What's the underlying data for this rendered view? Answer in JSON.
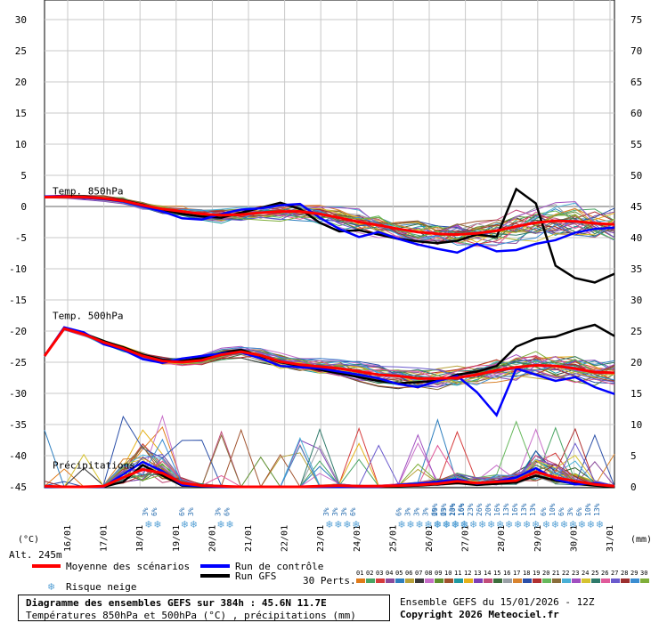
{
  "chart_data": {
    "type": "line",
    "title": "Diagramme des ensembles GEFS sur 384h : 45.6N 11.7E",
    "subtitle": "Températures 850hPa et 500hPa (°C) , précipitations (mm)",
    "run_info": "Ensemble GEFS du 15/01/2026 - 12Z",
    "copyright": "Copyright 2026 Meteociel.fr",
    "altitude_label": "Alt. 245m",
    "left_axis_unit": "(°C)",
    "right_axis_unit": "(mm)",
    "left_ticks": [
      30,
      25,
      20,
      15,
      10,
      5,
      0,
      -5,
      -10,
      -15,
      -20,
      -25,
      -30,
      -35,
      -40,
      -45
    ],
    "right_ticks": [
      75,
      70,
      65,
      60,
      55,
      50,
      45,
      40,
      35,
      30,
      25,
      20,
      15,
      10,
      5,
      0
    ],
    "ylim": [
      -45,
      30
    ],
    "x_dates": [
      "16/01",
      "17/01",
      "18/01",
      "19/01",
      "20/01",
      "21/01",
      "22/01",
      "23/01",
      "24/01",
      "25/01",
      "26/01",
      "27/01",
      "28/01",
      "29/01",
      "30/01",
      "31/01"
    ],
    "xlim_hours": [
      0,
      384
    ],
    "grid": true,
    "panel_labels": [
      "Temp. 850hPa",
      "Temp. 500hPa",
      "Précipitations"
    ],
    "legend": {
      "mean": "Moyenne des scénarios",
      "control": "Run de contrôle",
      "gfs": "Run GFS",
      "snow": "Risque neige",
      "perts": "30 Perts."
    },
    "member_numbers": [
      "01",
      "02",
      "03",
      "04",
      "05",
      "06",
      "07",
      "08",
      "09",
      "10",
      "11",
      "12",
      "13",
      "14",
      "15",
      "16",
      "17",
      "18",
      "19",
      "20",
      "21",
      "22",
      "23",
      "24",
      "25",
      "26",
      "27",
      "28",
      "29",
      "30"
    ],
    "member_colors": [
      "#e07b1a",
      "#4aa564",
      "#d63c3c",
      "#8b4a9b",
      "#2e7fbf",
      "#b8a23a",
      "#3a3a3a",
      "#c86fc9",
      "#5e8f2f",
      "#a0522d",
      "#1f9aa1",
      "#e6b21a",
      "#7d3fb7",
      "#c24d7a",
      "#3c6e3c",
      "#9aa0a6",
      "#d9842f",
      "#2b4fa8",
      "#b03030",
      "#67b85c",
      "#8a6d3b",
      "#4ab0d6",
      "#a14fc0",
      "#d6c330",
      "#2f7a6a",
      "#e05a9a",
      "#6a5acd",
      "#9c2f2f",
      "#3b8dd1",
      "#7fae3a"
    ],
    "series": [
      {
        "name": "Moyenne des scénarios",
        "role": "mean",
        "color": "#ff0000",
        "t850": [
          1.5,
          1.6,
          1.5,
          1.3,
          0.9,
          0.2,
          -0.4,
          -0.8,
          -1.2,
          -1.4,
          -1.3,
          -1.0,
          -0.8,
          -0.8,
          -1.2,
          -1.8,
          -2.5,
          -3.0,
          -3.6,
          -4.1,
          -4.4,
          -4.5,
          -4.3,
          -3.9,
          -3.2,
          -2.6,
          -2.3,
          -2.4,
          -2.7,
          -2.9
        ],
        "t500": [
          -24,
          -19.6,
          -20.5,
          -21.8,
          -22.8,
          -24,
          -24.8,
          -25,
          -24.7,
          -23.8,
          -23.3,
          -23.9,
          -24.9,
          -25.4,
          -25.7,
          -26,
          -26.5,
          -27,
          -27.2,
          -27.6,
          -27.6,
          -27.5,
          -27,
          -26.3,
          -25.8,
          -25.5,
          -25.6,
          -26,
          -26.6,
          -26.7
        ],
        "precip": [
          0.1,
          0,
          0,
          0.1,
          1.5,
          2.8,
          2.2,
          0.6,
          0.2,
          0.1,
          0,
          0,
          0,
          0,
          0.1,
          0.2,
          0.1,
          0.1,
          0.2,
          0.3,
          0.5,
          0.9,
          0.6,
          0.8,
          1.0,
          2.4,
          1.5,
          0.9,
          0.4,
          0.1
        ]
      },
      {
        "name": "Run de contrôle",
        "role": "control",
        "color": "#0000ff",
        "t850": [
          1.6,
          1.7,
          1.4,
          1.2,
          0.8,
          0.0,
          -0.8,
          -1.9,
          -2.1,
          -1.2,
          -0.5,
          -0.3,
          0.2,
          0.4,
          -1.8,
          -3.6,
          -4.9,
          -4.1,
          -5.2,
          -6.1,
          -6.8,
          -7.4,
          -6.0,
          -7.2,
          -7.0,
          -6.0,
          -5.4,
          -4.2,
          -3.6,
          -3.4
        ],
        "t500": [
          -24,
          -19.4,
          -20.2,
          -22.1,
          -23.0,
          -24.5,
          -25.1,
          -24.4,
          -24.0,
          -23.6,
          -23.4,
          -24.4,
          -25.6,
          -25.8,
          -26.0,
          -26.5,
          -27.0,
          -27.6,
          -28.5,
          -29.0,
          -28.0,
          -27.2,
          -29.8,
          -33.5,
          -26.0,
          -27.0,
          -28.0,
          -27.4,
          -29.0,
          -30.1
        ],
        "precip": [
          0,
          0,
          0,
          0,
          2.0,
          4.0,
          2.5,
          0.3,
          0.1,
          0,
          0,
          0,
          0,
          0,
          0,
          0,
          0,
          0,
          0.3,
          0.5,
          0.8,
          1.2,
          0.5,
          0.9,
          1.5,
          3.0,
          1.2,
          0.4,
          0.6,
          0.1
        ]
      },
      {
        "name": "Run GFS",
        "role": "gfs",
        "color": "#000000",
        "t850": [
          1.5,
          1.7,
          1.6,
          1.3,
          1.0,
          0.3,
          -0.5,
          -1.2,
          -1.6,
          -1.8,
          -1.0,
          -0.2,
          0.6,
          -0.4,
          -2.6,
          -4.0,
          -3.8,
          -4.5,
          -5.2,
          -5.6,
          -5.9,
          -5.5,
          -4.5,
          -4.9,
          2.8,
          0.5,
          -9.5,
          -11.5,
          -12.2,
          -10.8
        ],
        "t500": [
          -24,
          -19.5,
          -20.4,
          -21.6,
          -22.6,
          -23.8,
          -24.6,
          -24.8,
          -24.3,
          -23.5,
          -23.0,
          -24.0,
          -25.0,
          -25.6,
          -26.2,
          -26.8,
          -27.4,
          -28.0,
          -28.4,
          -28.2,
          -28.0,
          -27.0,
          -26.5,
          -25.6,
          -22.5,
          -21.2,
          -20.9,
          -19.8,
          -19.0,
          -20.8
        ],
        "precip": [
          0,
          0,
          0,
          0,
          0.8,
          3.5,
          1.8,
          0.2,
          0.1,
          0,
          0,
          0,
          0,
          0,
          0,
          0,
          0,
          0,
          0.1,
          0.2,
          0.4,
          0.6,
          0.3,
          0.5,
          0.7,
          1.8,
          1.0,
          0.5,
          0.2,
          0
        ]
      }
    ],
    "snow_markers": [
      {
        "date_index": 2,
        "probs": [
          "3%",
          "6%"
        ]
      },
      {
        "date_index": 3,
        "probs": [
          "6%",
          "3%"
        ]
      },
      {
        "date_index": 4,
        "probs": [
          "3%",
          "6%"
        ]
      },
      {
        "date_index": 7,
        "probs": [
          "3%",
          "3%",
          "3%",
          "6%"
        ]
      },
      {
        "date_index": 9,
        "probs": [
          "6%",
          "3%",
          "3%",
          "3%",
          "6%",
          "6%",
          "13%",
          "16%"
        ]
      },
      {
        "date_index": 10,
        "probs": [
          "20%",
          "23%",
          "20%",
          "16%",
          "23%",
          "26%",
          "20%",
          "16%",
          "13%",
          "16%",
          "13%",
          "13%"
        ]
      },
      {
        "date_index": 13,
        "probs": [
          "6%",
          "10%",
          "6%",
          "3%",
          "6%",
          "10%",
          "13%"
        ]
      }
    ]
  }
}
